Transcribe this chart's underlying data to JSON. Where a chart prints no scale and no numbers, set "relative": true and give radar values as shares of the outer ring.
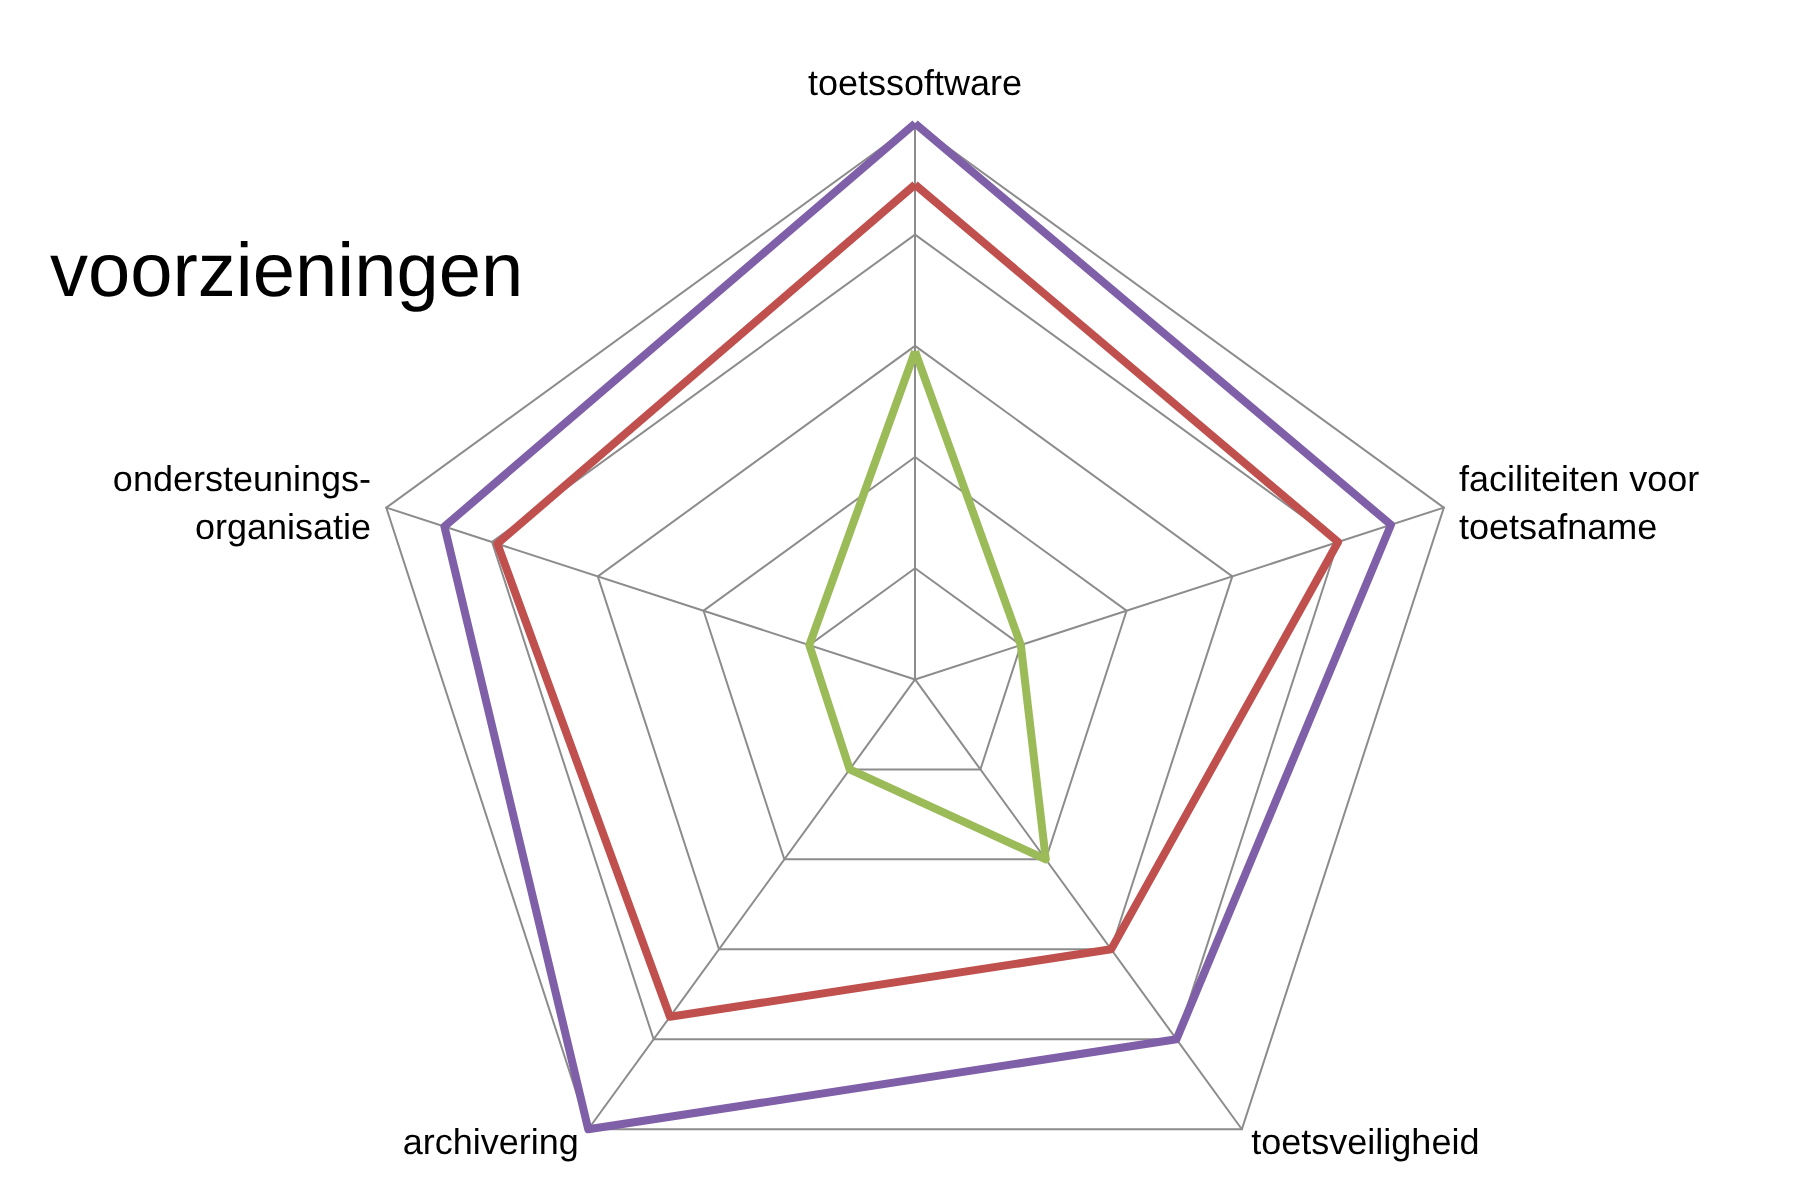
{
  "chart_data": {
    "type": "radar",
    "title": "voorzieningen",
    "relative": true,
    "categories": [
      "toetssoftware",
      "faciliteiten voor\ntoetsafname",
      "toetsveiligheid",
      "archivering",
      "ondersteunings-\norganisatie"
    ],
    "series": [
      {
        "color": "#9bbb59",
        "values": [
          0.59,
          0.2,
          0.4,
          0.2,
          0.2
        ]
      },
      {
        "color": "#c0504d",
        "values": [
          0.89,
          0.8,
          0.6,
          0.75,
          0.79
        ]
      },
      {
        "color": "#7f5fa8",
        "values": [
          1.0,
          0.9,
          0.8,
          1.0,
          0.89
        ]
      }
    ]
  }
}
